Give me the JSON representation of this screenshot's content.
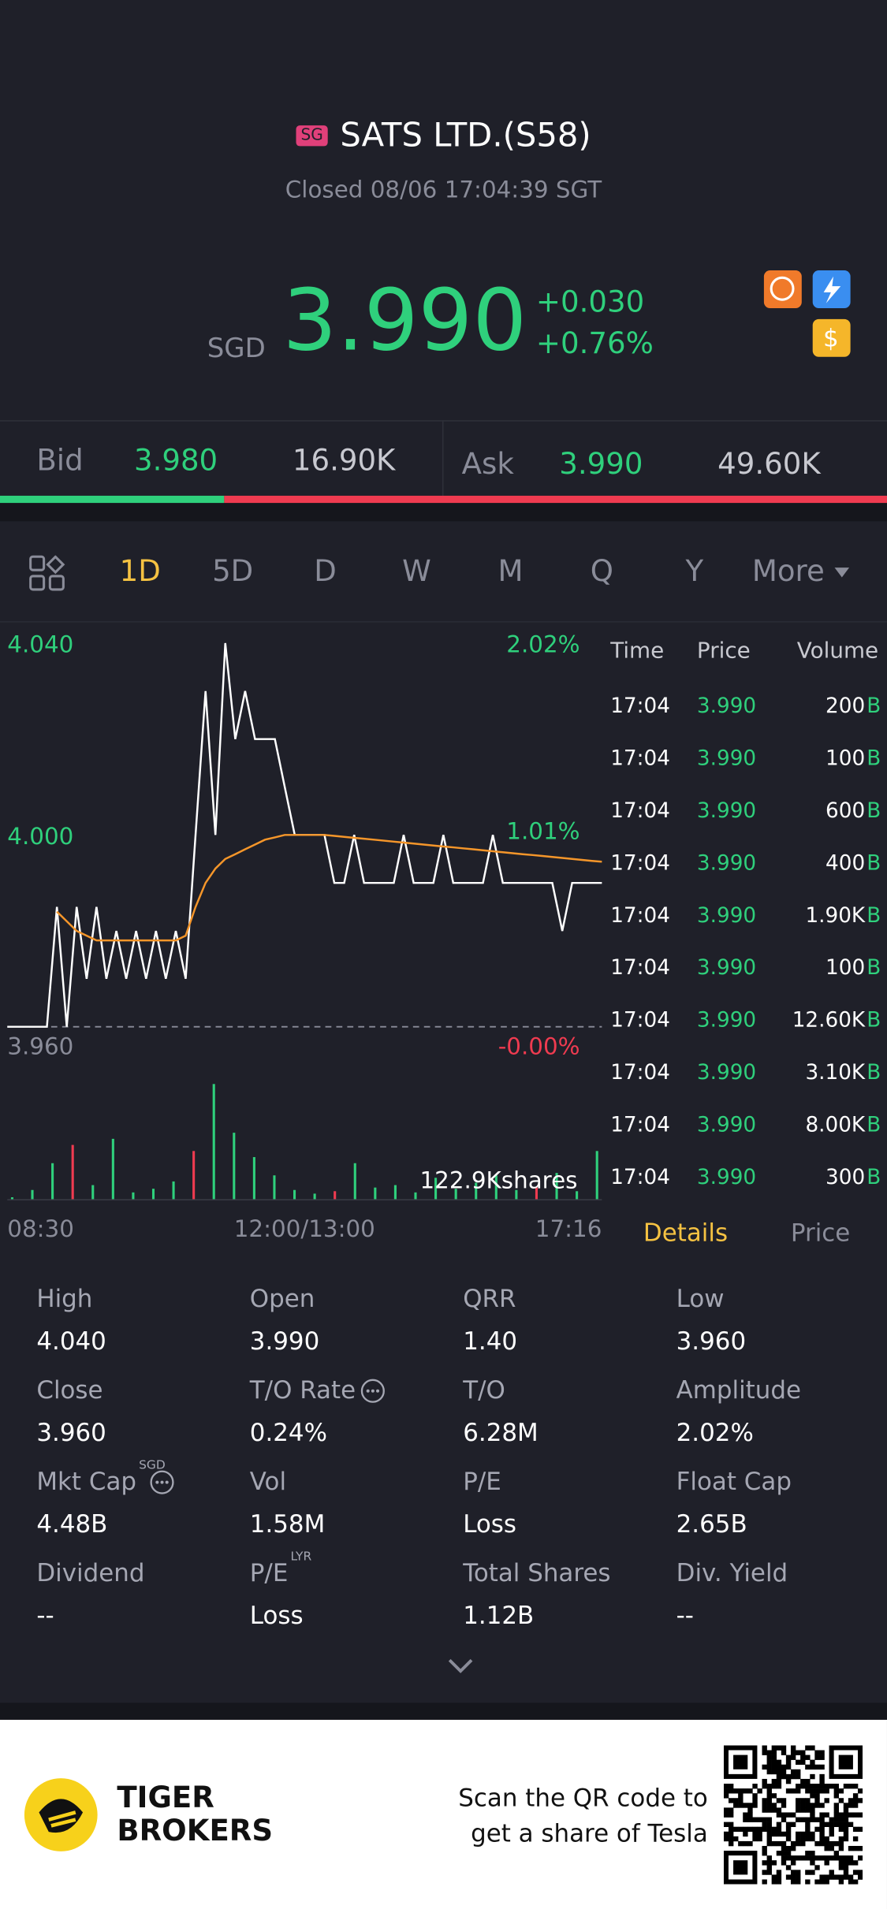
{
  "header": {
    "badge": "SG",
    "title": "SATS LTD.(S58)",
    "status": "Closed 08/06 17:04:39 SGT",
    "currency": "SGD",
    "price": "3.990",
    "change": "+0.030",
    "change_pct": "+0.76%"
  },
  "quote": {
    "bid_label": "Bid",
    "bid_price": "3.980",
    "bid_size": "16.90K",
    "ask_label": "Ask",
    "ask_price": "3.990",
    "ask_size": "49.60K"
  },
  "tabs": [
    "1D",
    "5D",
    "D",
    "W",
    "M",
    "Q",
    "Y",
    "More"
  ],
  "chart_data": {
    "type": "line",
    "series": [
      {
        "color": "#ffffff",
        "values": [
          3.96,
          3.96,
          3.96,
          3.96,
          3.96,
          3.985,
          3.96,
          3.985,
          3.97,
          3.985,
          3.97,
          3.98,
          3.97,
          3.98,
          3.97,
          3.98,
          3.97,
          3.98,
          3.97,
          4.0,
          4.03,
          4.0,
          4.04,
          4.02,
          4.03,
          4.02,
          4.02,
          4.02,
          4.01,
          4.0,
          4.0,
          4.0,
          4.0,
          3.99,
          3.99,
          4.0,
          3.99,
          3.99,
          3.99,
          3.99,
          4.0,
          3.99,
          3.99,
          3.99,
          4.0,
          3.99,
          3.99,
          3.99,
          3.99,
          4.0,
          3.99,
          3.99,
          3.99,
          3.99,
          3.99,
          3.99,
          3.98,
          3.99,
          3.99,
          3.99,
          3.99
        ]
      },
      {
        "color": "#f5962a",
        "values": [
          null,
          null,
          null,
          null,
          null,
          3.984,
          3.982,
          3.98,
          3.979,
          3.978,
          3.978,
          3.978,
          3.978,
          3.978,
          3.978,
          3.978,
          3.978,
          3.978,
          3.979,
          3.985,
          3.99,
          3.993,
          3.995,
          3.996,
          3.997,
          3.998,
          3.999,
          3.9995,
          4.0,
          4.0,
          4.0,
          4.0,
          4.0,
          3.9998,
          3.9996,
          3.9994,
          3.9992,
          3.999,
          3.9988,
          3.9986,
          3.9984,
          3.9982,
          3.998,
          3.9978,
          3.9976,
          3.9974,
          3.9972,
          3.997,
          3.9968,
          3.9966,
          3.9964,
          3.9962,
          3.996,
          3.9958,
          3.9956,
          3.9954,
          3.9952,
          3.995,
          3.9948,
          3.9946,
          3.9944
        ]
      }
    ],
    "xlim": [
      0,
      60
    ],
    "xticks": [
      {
        "value": 0,
        "label": "08:30"
      },
      {
        "value": 30,
        "label": "12:00/13:00"
      },
      {
        "value": 60,
        "label": "17:16"
      }
    ],
    "ylim": [
      3.96,
      4.04
    ],
    "yticks": [
      {
        "value": 4.04,
        "label": "4.040"
      },
      {
        "value": 4.0,
        "label": "4.000"
      },
      {
        "value": 3.96,
        "label": "3.960"
      }
    ],
    "y2lim": [
      0,
      2.02
    ],
    "y2ticks": [
      {
        "value": 2.02,
        "label": "2.02%"
      },
      {
        "value": 1.01,
        "label": "1.01%"
      },
      {
        "value": 0,
        "label": "-0.00%"
      }
    ],
    "volume": {
      "label": "122.9Kshares",
      "values": [
        2000,
        8000,
        30000,
        45000,
        12000,
        50000,
        6000,
        9000,
        15000,
        40000,
        95000,
        55000,
        35000,
        20000,
        8000,
        5000,
        7000,
        30000,
        10000,
        12000,
        6000,
        18000,
        9000,
        14000,
        20000,
        8000,
        10000,
        22000,
        7000,
        40000
      ],
      "colors": [
        "#2fd07c",
        "#2fd07c",
        "#2fd07c",
        "#ef3b50",
        "#2fd07c",
        "#2fd07c",
        "#2fd07c",
        "#2fd07c",
        "#2fd07c",
        "#ef3b50",
        "#2fd07c",
        "#2fd07c",
        "#2fd07c",
        "#2fd07c",
        "#2fd07c",
        "#2fd07c",
        "#ef3b50",
        "#2fd07c",
        "#2fd07c",
        "#2fd07c",
        "#2fd07c",
        "#2fd07c",
        "#2fd07c",
        "#2fd07c",
        "#2fd07c",
        "#2fd07c",
        "#ef3b50",
        "#2fd07c",
        "#2fd07c",
        "#2fd07c"
      ]
    }
  },
  "trades": {
    "columns": [
      "Time",
      "Price",
      "Volume"
    ],
    "rows": [
      [
        "17:04",
        "3.990",
        "200",
        "B"
      ],
      [
        "17:04",
        "3.990",
        "100",
        "B"
      ],
      [
        "17:04",
        "3.990",
        "600",
        "B"
      ],
      [
        "17:04",
        "3.990",
        "400",
        "B"
      ],
      [
        "17:04",
        "3.990",
        "1.90K",
        "B"
      ],
      [
        "17:04",
        "3.990",
        "100",
        "B"
      ],
      [
        "17:04",
        "3.990",
        "12.60K",
        "B"
      ],
      [
        "17:04",
        "3.990",
        "3.10K",
        "B"
      ],
      [
        "17:04",
        "3.990",
        "8.00K",
        "B"
      ],
      [
        "17:04",
        "3.990",
        "300",
        "B"
      ]
    ]
  },
  "panel_tabs": [
    "Details",
    "Price"
  ],
  "stats": [
    {
      "label": "High",
      "value": "4.040"
    },
    {
      "label": "Open",
      "value": "3.990"
    },
    {
      "label": "QRR",
      "value": "1.40"
    },
    {
      "label": "Low",
      "value": "3.960"
    },
    {
      "label": "Close",
      "value": "3.960"
    },
    {
      "label": "T/O Rate",
      "value": "0.24%",
      "info_icon": true
    },
    {
      "label": "T/O",
      "value": "6.28M"
    },
    {
      "label": "Amplitude",
      "value": "2.02%"
    },
    {
      "label": "Mkt Cap",
      "sup": "SGD",
      "value": "4.48B",
      "info_icon": true
    },
    {
      "label": "Vol",
      "value": "1.58M"
    },
    {
      "label": "P/E",
      "value": "Loss"
    },
    {
      "label": "Float Cap",
      "value": "2.65B"
    },
    {
      "label": "Dividend",
      "value": "--"
    },
    {
      "label": "P/E",
      "sup": "LYR",
      "value": "Loss"
    },
    {
      "label": "Total Shares",
      "value": "1.12B"
    },
    {
      "label": "Div. Yield",
      "value": "--"
    }
  ],
  "footer": {
    "brand": [
      "TIGER",
      "BROKERS"
    ],
    "promo": [
      "Scan the QR code to",
      "get a share of Tesla"
    ]
  }
}
